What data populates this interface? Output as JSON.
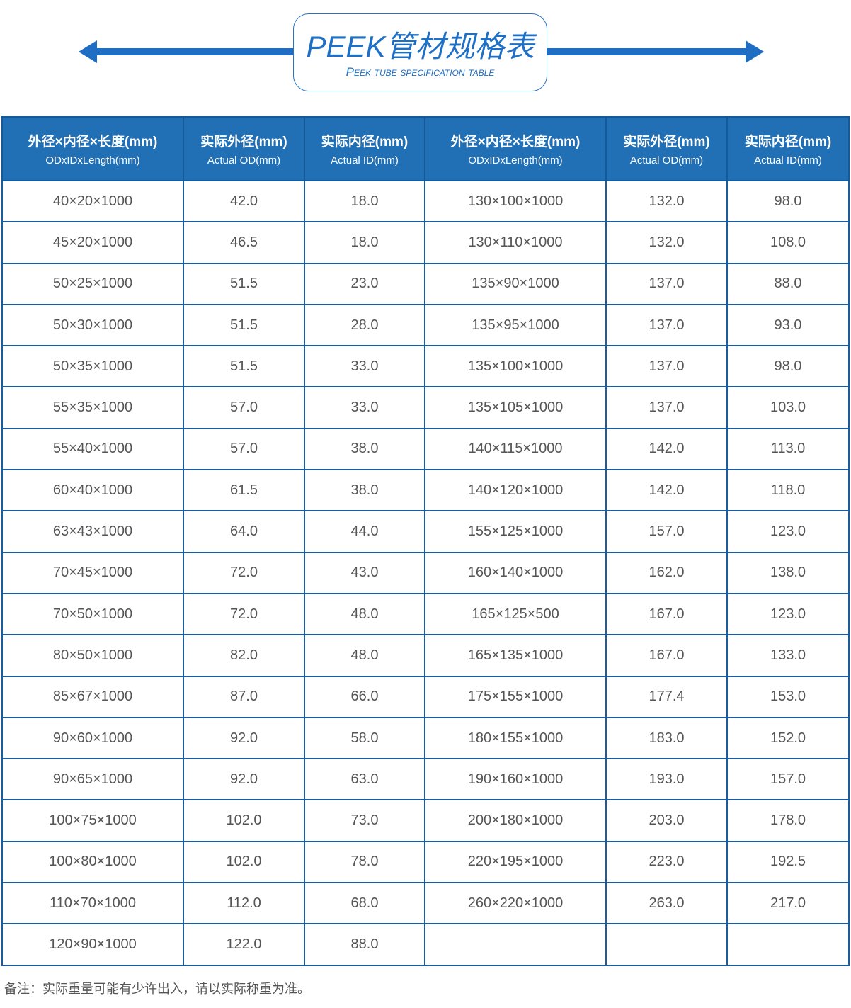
{
  "header": {
    "title": "PEEK管材规格表",
    "subtitle": "Peek tube specification table",
    "accent": "#1e6fc6"
  },
  "table": {
    "columns": [
      {
        "cn": "外径×内径×长度(mm)",
        "en": "ODxIDxLength(mm)"
      },
      {
        "cn": "实际外径(mm)",
        "en": "Actual OD(mm)"
      },
      {
        "cn": "实际内径(mm)",
        "en": "Actual ID(mm)"
      },
      {
        "cn": "外径×内径×长度(mm)",
        "en": "ODxIDxLength(mm)"
      },
      {
        "cn": "实际外径(mm)",
        "en": "Actual OD(mm)"
      },
      {
        "cn": "实际内径(mm)",
        "en": "Actual ID(mm)"
      }
    ],
    "rows": [
      [
        "40×20×1000",
        "42.0",
        "18.0",
        "130×100×1000",
        "132.0",
        "98.0"
      ],
      [
        "45×20×1000",
        "46.5",
        "18.0",
        "130×110×1000",
        "132.0",
        "108.0"
      ],
      [
        "50×25×1000",
        "51.5",
        "23.0",
        "135×90×1000",
        "137.0",
        "88.0"
      ],
      [
        "50×30×1000",
        "51.5",
        "28.0",
        "135×95×1000",
        "137.0",
        "93.0"
      ],
      [
        "50×35×1000",
        "51.5",
        "33.0",
        "135×100×1000",
        "137.0",
        "98.0"
      ],
      [
        "55×35×1000",
        "57.0",
        "33.0",
        "135×105×1000",
        "137.0",
        "103.0"
      ],
      [
        "55×40×1000",
        "57.0",
        "38.0",
        "140×115×1000",
        "142.0",
        "113.0"
      ],
      [
        "60×40×1000",
        "61.5",
        "38.0",
        "140×120×1000",
        "142.0",
        "118.0"
      ],
      [
        "63×43×1000",
        "64.0",
        "44.0",
        "155×125×1000",
        "157.0",
        "123.0"
      ],
      [
        "70×45×1000",
        "72.0",
        "43.0",
        "160×140×1000",
        "162.0",
        "138.0"
      ],
      [
        "70×50×1000",
        "72.0",
        "48.0",
        "165×125×500",
        "167.0",
        "123.0"
      ],
      [
        "80×50×1000",
        "82.0",
        "48.0",
        "165×135×1000",
        "167.0",
        "133.0"
      ],
      [
        "85×67×1000",
        "87.0",
        "66.0",
        "175×155×1000",
        "177.4",
        "153.0"
      ],
      [
        "90×60×1000",
        "92.0",
        "58.0",
        "180×155×1000",
        "183.0",
        "152.0"
      ],
      [
        "90×65×1000",
        "92.0",
        "63.0",
        "190×160×1000",
        "193.0",
        "157.0"
      ],
      [
        "100×75×1000",
        "102.0",
        "73.0",
        "200×180×1000",
        "203.0",
        "178.0"
      ],
      [
        "100×80×1000",
        "102.0",
        "78.0",
        "220×195×1000",
        "223.0",
        "192.5"
      ],
      [
        "110×70×1000",
        "112.0",
        "68.0",
        "260×220×1000",
        "263.0",
        "217.0"
      ],
      [
        "120×90×1000",
        "122.0",
        "88.0",
        "",
        "",
        ""
      ]
    ]
  },
  "note": "备注：实际重量可能有少许出入，请以实际称重为准。"
}
